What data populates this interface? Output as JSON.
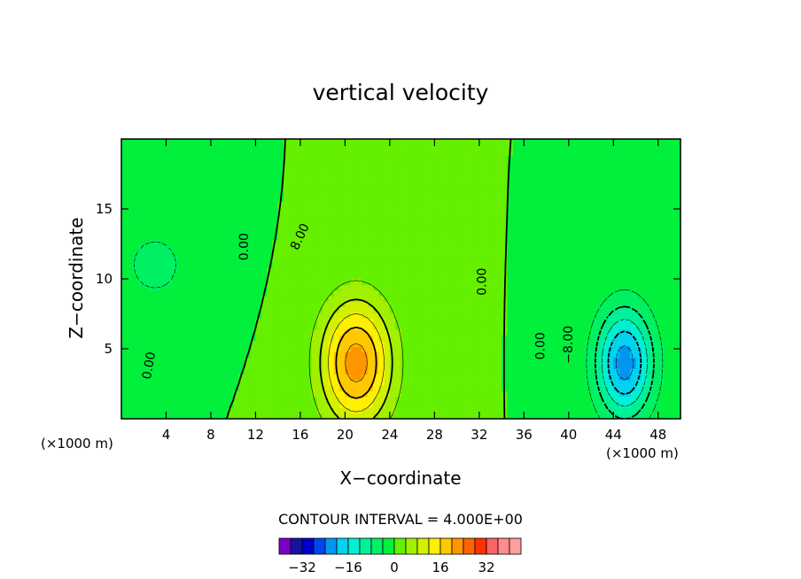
{
  "chart_data": {
    "type": "heatmap",
    "title": "vertical velocity",
    "xlabel": "X−coordinate",
    "ylabel": "Z−coordinate",
    "x_unit_left": "(×1000 m)",
    "x_unit_right": "(×1000 m)",
    "xlim": [
      0,
      50
    ],
    "ylim": [
      0,
      20
    ],
    "x_ticks": [
      4,
      8,
      12,
      16,
      20,
      24,
      28,
      32,
      36,
      40,
      44,
      48
    ],
    "y_ticks": [
      5,
      10,
      15
    ],
    "contour_interval_text": "CONTOUR INTERVAL = 4.000E+00",
    "contour_interval": 4,
    "contour_labels": [
      {
        "text": "0.00",
        "x": 2.5,
        "y": 3.8,
        "angle": -80
      },
      {
        "text": "0.00",
        "x": 11.0,
        "y": 12.3,
        "angle": -90
      },
      {
        "text": "8.00",
        "x": 16.0,
        "y": 13.0,
        "angle": -65
      },
      {
        "text": "0.00",
        "x": 32.3,
        "y": 9.8,
        "angle": -90
      },
      {
        "text": "0.00",
        "x": 37.5,
        "y": 5.2,
        "angle": -90
      },
      {
        "text": "−8.00",
        "x": 40.0,
        "y": 5.3,
        "angle": -90
      }
    ],
    "features": [
      {
        "name": "updraft",
        "peak": 22,
        "x": 21,
        "y": 4,
        "sx": 3.2,
        "sy": 4.5
      },
      {
        "name": "downdraft",
        "peak": -22,
        "x": 45,
        "y": 4,
        "sx": 2.6,
        "sy": 4.0
      },
      {
        "name": "left-sink",
        "peak": -5,
        "x": 3,
        "y": 11,
        "sx": 4.0,
        "sy": 3.5
      }
    ],
    "colorbar": {
      "ticks": [
        -32,
        -16,
        0,
        16,
        32
      ],
      "tick_labels": [
        "−32",
        "−16",
        "0",
        "16",
        "32"
      ],
      "levels_min": -40,
      "levels_step": 4,
      "colors": [
        "#7A00C8",
        "#1414A0",
        "#0000C8",
        "#0046F0",
        "#0096F0",
        "#00D2F0",
        "#00F0D2",
        "#00F096",
        "#00F064",
        "#00F03C",
        "#64F000",
        "#A0F000",
        "#D2F000",
        "#FFF000",
        "#FFC800",
        "#FF9600",
        "#FF6400",
        "#FF3200",
        "#FF6464",
        "#FF8C8C",
        "#FFA0A0"
      ]
    }
  }
}
